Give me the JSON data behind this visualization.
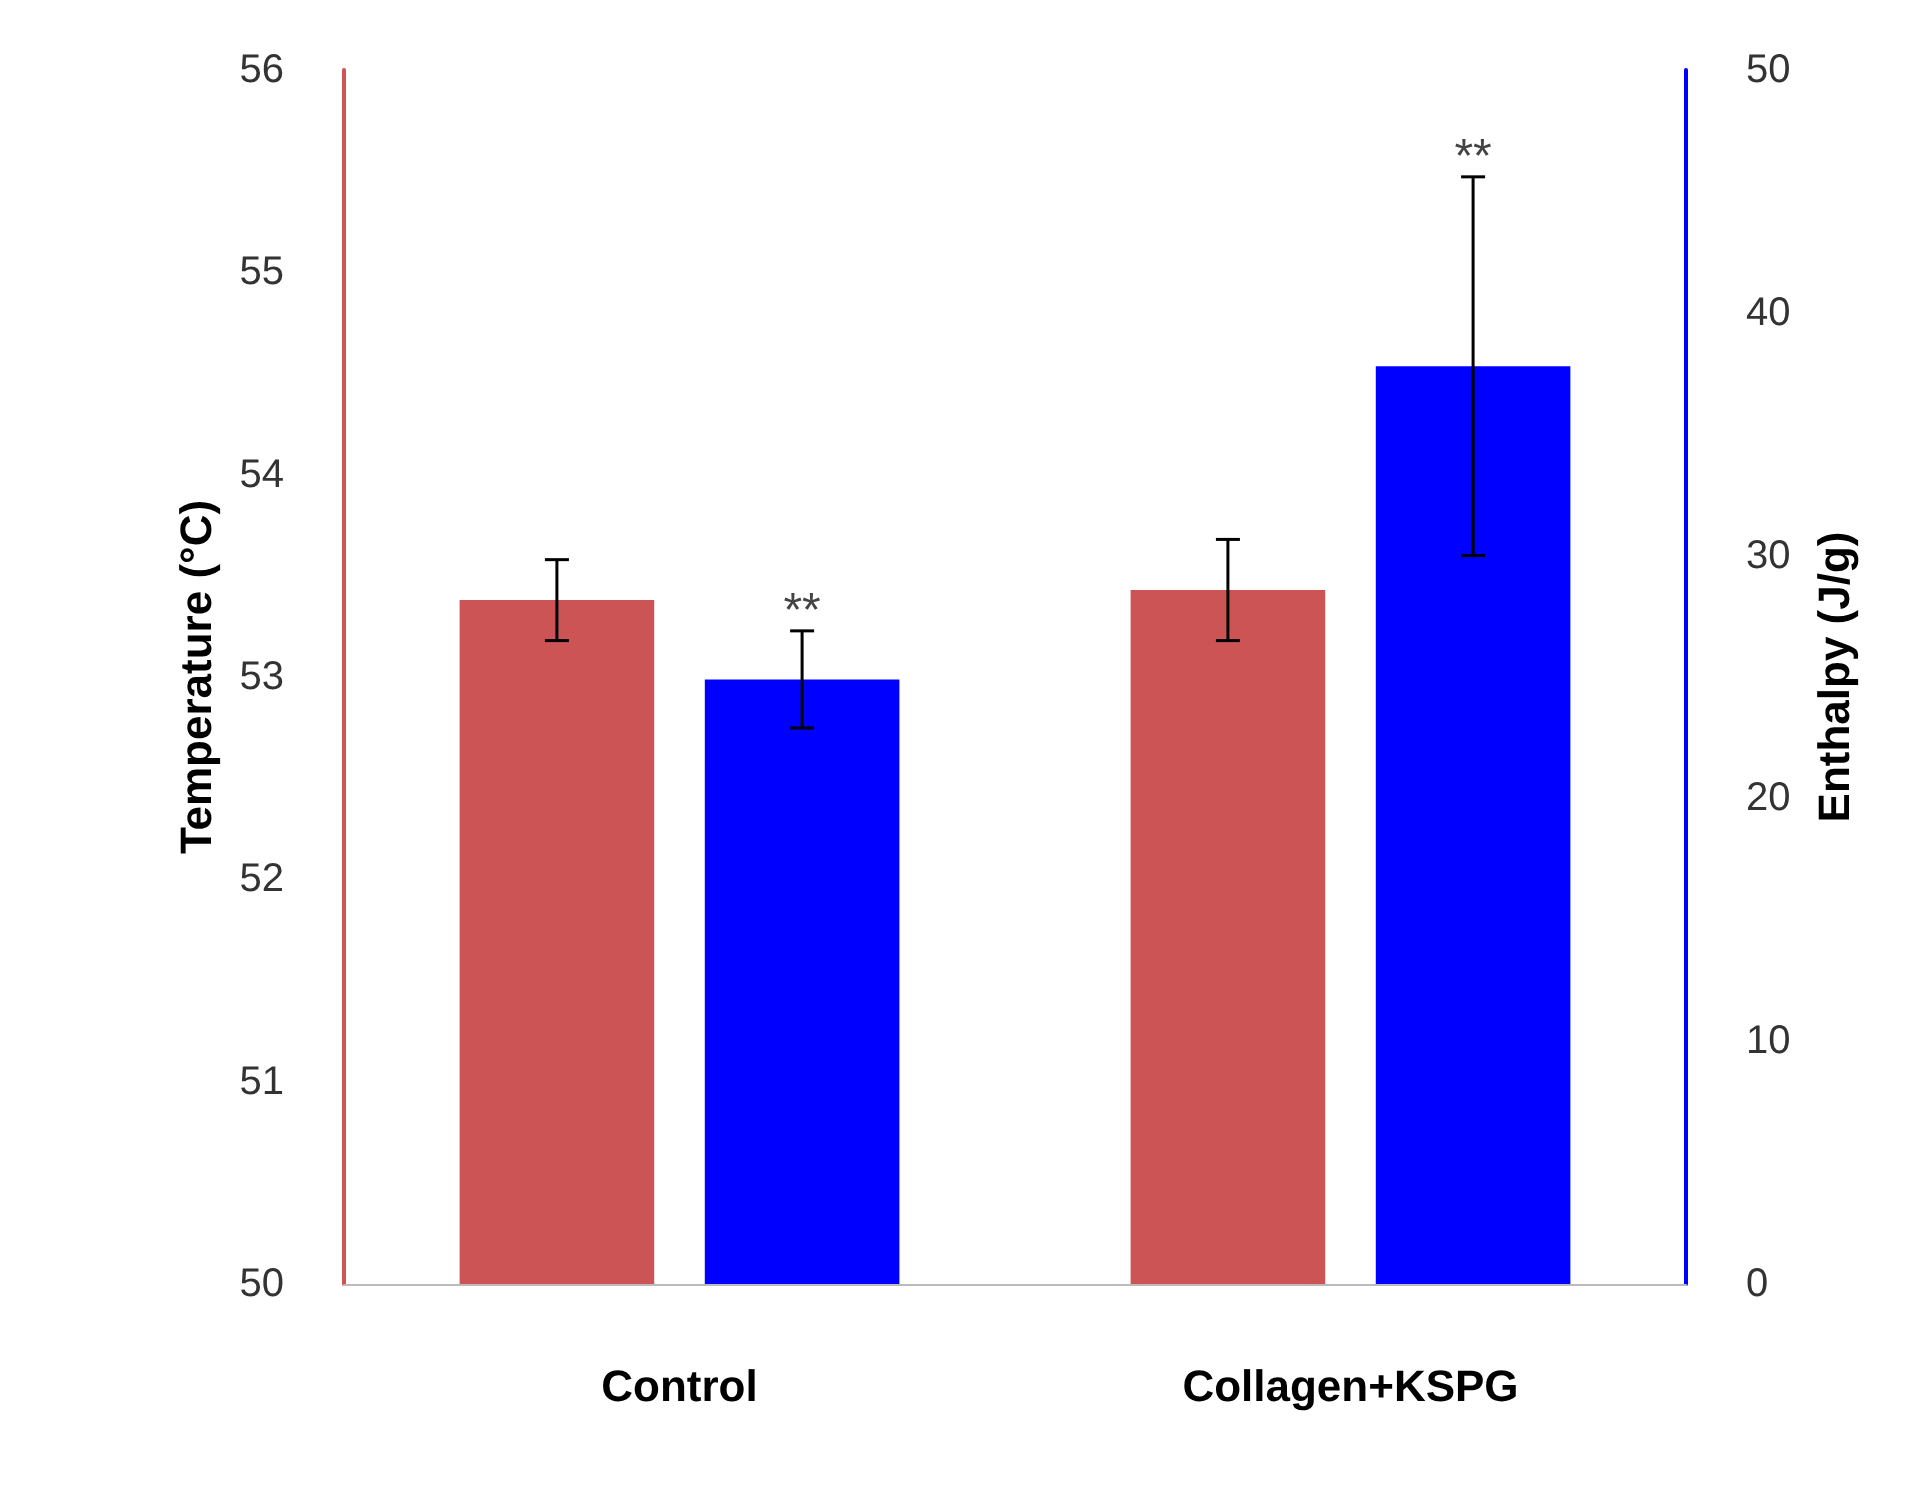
{
  "chart_data": {
    "type": "bar",
    "categories": [
      "Control",
      "Collagen+KSPG"
    ],
    "ylabel": "Temperature (°C)",
    "y2label": "Enthalpy (J/g)",
    "ylim": [
      50,
      56
    ],
    "yticks": [
      50,
      51,
      52,
      53,
      54,
      55,
      56
    ],
    "y2lim": [
      0,
      50
    ],
    "y2ticks": [
      0,
      10,
      20,
      30,
      40,
      50
    ],
    "series": [
      {
        "color": "#cd5454",
        "values": [
          53.38,
          53.43
        ],
        "errors": [
          0.2,
          0.25
        ]
      },
      {
        "color": "#0000ff",
        "axis": "y2",
        "values": [
          24.9,
          37.8
        ],
        "errors": [
          2,
          7.8
        ]
      }
    ],
    "annotations": [
      "**",
      "**"
    ]
  }
}
